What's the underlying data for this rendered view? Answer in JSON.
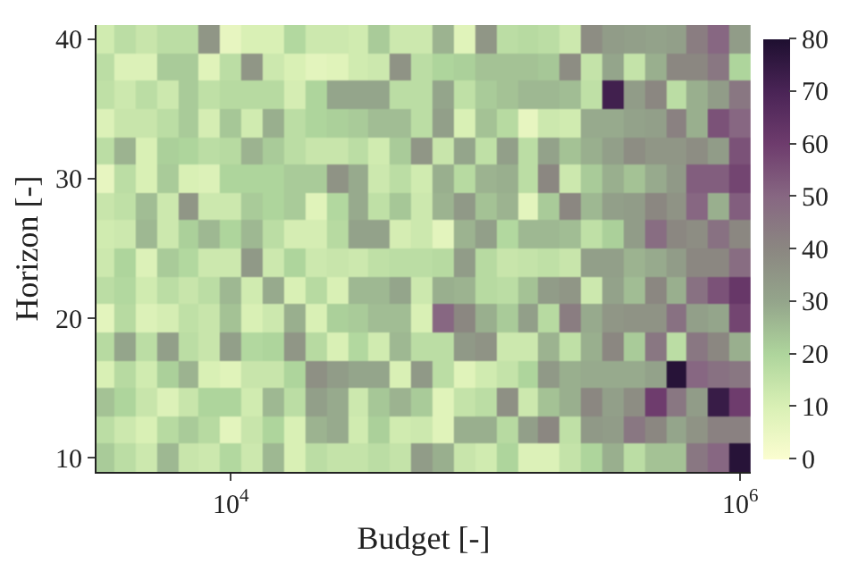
{
  "chart_data": {
    "type": "heatmap",
    "xlabel": "Budget [-]",
    "ylabel": "Horizon [-]",
    "log": "x",
    "x": [
      3160,
      3830,
      4640,
      5620,
      6810,
      8250,
      10000,
      12100,
      14700,
      17800,
      21500,
      26100,
      31600,
      38300,
      46400,
      56200,
      68100,
      82500,
      100000,
      121000,
      147000,
      178000,
      215000,
      261000,
      316000,
      383000,
      464000,
      562000,
      681000,
      825000,
      1000000
    ],
    "y": [
      40,
      38,
      36,
      34,
      32,
      30,
      28,
      26,
      24,
      22,
      20,
      18,
      16,
      14,
      12,
      10
    ],
    "xlim": [
      2970,
      1100000
    ],
    "xticks": [
      {
        "value": 10000,
        "label": "10$^{4}$"
      },
      {
        "value": 1000000,
        "label": "10$^{6}$"
      }
    ],
    "ylim": [
      9,
      41
    ],
    "yticks": [
      10,
      20,
      30,
      40
    ],
    "clim": [
      0,
      80
    ],
    "cticks": [
      0,
      10,
      20,
      30,
      40,
      50,
      60,
      70,
      80
    ],
    "cells": [
      [
        12,
        17,
        14,
        17,
        17,
        35,
        6,
        10,
        10,
        19,
        13,
        13,
        12,
        22,
        13,
        13,
        27,
        8,
        35,
        17,
        18,
        17,
        13,
        38,
        33,
        32,
        31,
        32,
        43,
        50,
        33
      ],
      [
        17,
        9,
        9,
        22,
        22,
        8,
        17,
        35,
        13,
        10,
        7,
        8,
        12,
        13,
        36,
        17,
        20,
        21,
        24,
        24,
        24,
        23,
        38,
        15,
        30,
        15,
        28,
        40,
        40,
        45,
        20
      ],
      [
        16,
        13,
        17,
        13,
        22,
        16,
        18,
        18,
        18,
        11,
        20,
        30,
        30,
        30,
        17,
        17,
        30,
        16,
        22,
        24,
        26,
        26,
        25,
        16,
        72,
        33,
        40,
        17,
        28,
        33,
        45
      ],
      [
        9,
        14,
        14,
        17,
        22,
        11,
        23,
        12,
        28,
        17,
        20,
        21,
        22,
        25,
        25,
        17,
        32,
        10,
        24,
        18,
        6,
        13,
        12,
        29,
        29,
        31,
        32,
        42,
        28,
        55,
        50
      ],
      [
        17,
        27,
        10,
        21,
        20,
        17,
        18,
        27,
        22,
        17,
        14,
        14,
        17,
        12,
        22,
        35,
        14,
        30,
        16,
        32,
        17,
        31,
        24,
        28,
        32,
        38,
        35,
        35,
        38,
        33,
        55
      ],
      [
        6,
        17,
        10,
        22,
        10,
        9,
        20,
        20,
        20,
        22,
        22,
        36,
        29,
        13,
        17,
        12,
        28,
        18,
        27,
        28,
        17,
        40,
        13,
        22,
        28,
        24,
        29,
        34,
        52,
        52,
        58
      ],
      [
        14,
        16,
        25,
        13,
        35,
        13,
        13,
        22,
        20,
        22,
        8,
        19,
        29,
        16,
        23,
        13,
        27,
        34,
        24,
        27,
        7,
        22,
        40,
        26,
        32,
        33,
        40,
        36,
        50,
        28,
        52
      ],
      [
        12,
        13,
        26,
        13,
        21,
        26,
        20,
        26,
        17,
        11,
        11,
        18,
        31,
        31,
        11,
        13,
        7,
        27,
        32,
        19,
        26,
        26,
        25,
        16,
        21,
        33,
        48,
        40,
        38,
        47,
        40
      ],
      [
        13,
        20,
        9,
        22,
        19,
        13,
        13,
        34,
        13,
        20,
        13,
        14,
        13,
        16,
        17,
        17,
        18,
        33,
        18,
        14,
        15,
        16,
        14,
        32,
        32,
        27,
        29,
        33,
        40,
        40,
        48
      ],
      [
        17,
        19,
        12,
        17,
        14,
        17,
        26,
        12,
        29,
        10,
        18,
        10,
        26,
        26,
        30,
        13,
        28,
        27,
        18,
        17,
        24,
        33,
        35,
        13,
        31,
        25,
        40,
        28,
        47,
        55,
        62
      ],
      [
        7,
        18,
        9,
        11,
        16,
        14,
        24,
        10,
        13,
        28,
        10,
        21,
        22,
        25,
        25,
        10,
        50,
        40,
        28,
        22,
        32,
        18,
        43,
        29,
        35,
        36,
        36,
        47,
        32,
        30,
        58
      ],
      [
        18,
        30,
        17,
        32,
        17,
        14,
        32,
        19,
        20,
        35,
        18,
        10,
        19,
        12,
        26,
        17,
        17,
        34,
        36,
        13,
        13,
        27,
        16,
        28,
        40,
        22,
        45,
        17,
        45,
        40,
        28
      ],
      [
        10,
        18,
        12,
        21,
        27,
        10,
        8,
        14,
        14,
        20,
        37,
        33,
        30,
        30,
        10,
        34,
        17,
        8,
        12,
        15,
        20,
        34,
        28,
        29,
        29,
        29,
        31,
        78,
        50,
        47,
        45
      ],
      [
        24,
        20,
        14,
        9,
        14,
        20,
        20,
        12,
        26,
        17,
        32,
        29,
        13,
        23,
        27,
        22,
        8,
        15,
        17,
        37,
        13,
        24,
        28,
        40,
        32,
        38,
        60,
        45,
        33,
        74,
        60
      ],
      [
        17,
        13,
        10,
        18,
        22,
        18,
        7,
        14,
        20,
        10,
        27,
        29,
        12,
        21,
        12,
        13,
        8,
        28,
        28,
        18,
        32,
        40,
        16,
        34,
        33,
        45,
        40,
        30,
        36,
        42,
        42
      ],
      [
        22,
        17,
        13,
        26,
        14,
        13,
        19,
        13,
        26,
        10,
        17,
        15,
        15,
        17,
        15,
        33,
        28,
        14,
        12,
        20,
        9,
        9,
        15,
        20,
        28,
        17,
        24,
        24,
        45,
        50,
        78
      ]
    ]
  }
}
